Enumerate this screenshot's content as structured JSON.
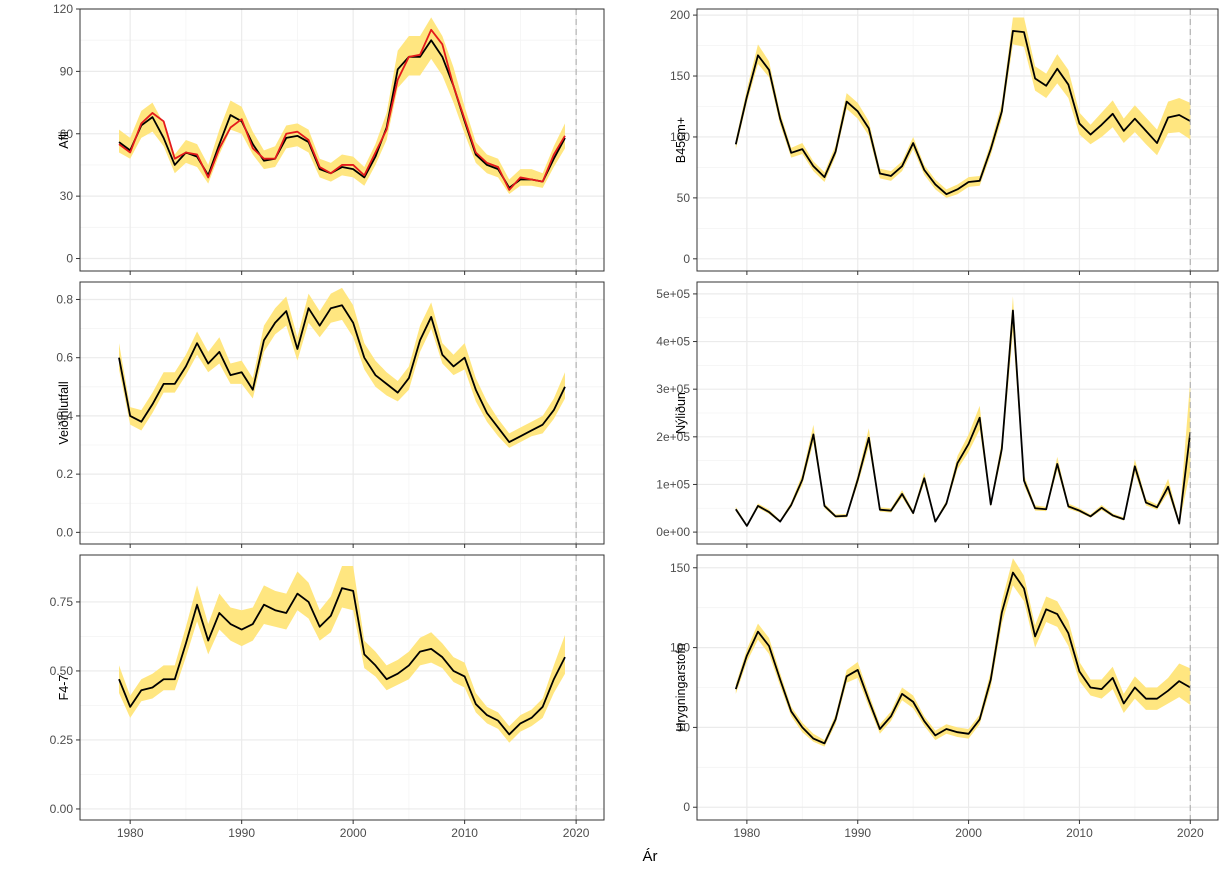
{
  "figure": {
    "xlabel": "Ár"
  },
  "chart_data": [
    {
      "type": "line",
      "ylabel": "Afli",
      "x": [
        1979,
        1980,
        1981,
        1982,
        1983,
        1984,
        1985,
        1986,
        1987,
        1988,
        1989,
        1990,
        1991,
        1992,
        1993,
        1994,
        1995,
        1996,
        1997,
        1998,
        1999,
        2000,
        2001,
        2002,
        2003,
        2004,
        2005,
        2006,
        2007,
        2008,
        2009,
        2010,
        2011,
        2012,
        2013,
        2014,
        2015,
        2016,
        2017,
        2018,
        2019
      ],
      "xlim": [
        1975.5,
        2022.5
      ],
      "xticks": [
        1980,
        1990,
        2000,
        2010,
        2020
      ],
      "ylim": [
        -6,
        120
      ],
      "yticks": [
        0,
        30,
        60,
        90,
        120
      ],
      "yticklabels": [
        "0",
        "30",
        "60",
        "90",
        "120"
      ],
      "vline": 2020,
      "series": [
        {
          "role": "estimate",
          "color": "#000000",
          "values": [
            56,
            52,
            64,
            68,
            58,
            45,
            51,
            49,
            40,
            55,
            69,
            66,
            55,
            47,
            48,
            58,
            59,
            56,
            43,
            41,
            44,
            43,
            39,
            49,
            63,
            91,
            97,
            97,
            105,
            97,
            83,
            66,
            50,
            45,
            43,
            34,
            38,
            38,
            37,
            48,
            58
          ]
        },
        {
          "role": "observed",
          "color": "#e41a1c",
          "values": [
            55,
            51,
            65,
            70,
            66,
            48,
            51,
            50,
            39,
            53,
            63,
            67,
            53,
            48,
            48,
            60,
            61,
            57,
            44,
            41,
            45,
            45,
            40,
            51,
            62,
            86,
            97,
            98,
            110,
            103,
            83,
            67,
            51,
            46,
            44,
            33,
            39,
            38,
            37,
            50,
            59
          ]
        }
      ],
      "band_lower": [
        51,
        48,
        58,
        61,
        54,
        41,
        46,
        44,
        36,
        50,
        62,
        60,
        50,
        43,
        44,
        53,
        54,
        51,
        39,
        37,
        40,
        39,
        35,
        45,
        57,
        82,
        88,
        88,
        96,
        88,
        75,
        60,
        46,
        41,
        39,
        31,
        35,
        35,
        34,
        44,
        53
      ],
      "band_upper": [
        62,
        58,
        71,
        75,
        65,
        50,
        57,
        55,
        45,
        62,
        76,
        73,
        61,
        52,
        54,
        64,
        65,
        62,
        48,
        46,
        50,
        49,
        44,
        55,
        70,
        100,
        107,
        107,
        116,
        107,
        92,
        73,
        56,
        50,
        48,
        38,
        43,
        43,
        41,
        54,
        65
      ]
    },
    {
      "type": "line",
      "ylabel": "B45cm+",
      "x": [
        1979,
        1980,
        1981,
        1982,
        1983,
        1984,
        1985,
        1986,
        1987,
        1988,
        1989,
        1990,
        1991,
        1992,
        1993,
        1994,
        1995,
        1996,
        1997,
        1998,
        1999,
        2000,
        2001,
        2002,
        2003,
        2004,
        2005,
        2006,
        2007,
        2008,
        2009,
        2010,
        2011,
        2012,
        2013,
        2014,
        2015,
        2016,
        2017,
        2018,
        2019,
        2020
      ],
      "xlim": [
        1975.5,
        2022.5
      ],
      "xticks": [
        1980,
        1990,
        2000,
        2010,
        2020
      ],
      "ylim": [
        -10,
        205
      ],
      "yticks": [
        0,
        50,
        100,
        150,
        200
      ],
      "yticklabels": [
        "0",
        "50",
        "100",
        "150",
        "200"
      ],
      "vline": 2020,
      "series": [
        {
          "role": "estimate",
          "color": "#000000",
          "values": [
            94,
            133,
            167,
            155,
            115,
            87,
            90,
            76,
            67,
            88,
            129,
            121,
            107,
            70,
            68,
            76,
            95,
            73,
            61,
            53,
            57,
            63,
            64,
            90,
            121,
            187,
            186,
            148,
            142,
            156,
            143,
            111,
            102,
            110,
            119,
            105,
            115,
            105,
            95,
            116,
            118,
            113
          ]
        }
      ],
      "band_lower": [
        90,
        128,
        160,
        149,
        110,
        83,
        86,
        72,
        63,
        84,
        123,
        115,
        101,
        66,
        64,
        72,
        90,
        69,
        57,
        50,
        53,
        59,
        60,
        85,
        115,
        176,
        174,
        138,
        132,
        144,
        132,
        102,
        94,
        100,
        108,
        95,
        104,
        94,
        85,
        103,
        104,
        98
      ],
      "band_upper": [
        98,
        139,
        176,
        162,
        120,
        91,
        95,
        80,
        71,
        93,
        136,
        128,
        113,
        74,
        72,
        80,
        100,
        77,
        65,
        57,
        61,
        67,
        68,
        95,
        128,
        198,
        198,
        158,
        152,
        168,
        155,
        120,
        110,
        120,
        130,
        115,
        126,
        116,
        106,
        129,
        132,
        128
      ]
    },
    {
      "type": "line",
      "ylabel": "Veiðihlutfall",
      "x": [
        1979,
        1980,
        1981,
        1982,
        1983,
        1984,
        1985,
        1986,
        1987,
        1988,
        1989,
        1990,
        1991,
        1992,
        1993,
        1994,
        1995,
        1996,
        1997,
        1998,
        1999,
        2000,
        2001,
        2002,
        2003,
        2004,
        2005,
        2006,
        2007,
        2008,
        2009,
        2010,
        2011,
        2012,
        2013,
        2014,
        2015,
        2016,
        2017,
        2018,
        2019
      ],
      "xlim": [
        1975.5,
        2022.5
      ],
      "xticks": [
        1980,
        1990,
        2000,
        2010,
        2020
      ],
      "ylim": [
        -0.04,
        0.86
      ],
      "yticks": [
        0.0,
        0.2,
        0.4,
        0.6,
        0.8
      ],
      "yticklabels": [
        "0.0",
        "0.2",
        "0.4",
        "0.6",
        "0.8"
      ],
      "vline": 2020,
      "series": [
        {
          "role": "estimate",
          "color": "#000000",
          "values": [
            0.6,
            0.4,
            0.38,
            0.44,
            0.51,
            0.51,
            0.57,
            0.65,
            0.58,
            0.62,
            0.54,
            0.55,
            0.49,
            0.66,
            0.72,
            0.76,
            0.63,
            0.77,
            0.71,
            0.77,
            0.78,
            0.72,
            0.6,
            0.54,
            0.51,
            0.48,
            0.53,
            0.66,
            0.74,
            0.61,
            0.57,
            0.6,
            0.49,
            0.41,
            0.36,
            0.31,
            0.33,
            0.35,
            0.37,
            0.42,
            0.5
          ]
        }
      ],
      "band_lower": [
        0.56,
        0.37,
        0.35,
        0.41,
        0.48,
        0.48,
        0.54,
        0.61,
        0.55,
        0.58,
        0.51,
        0.51,
        0.46,
        0.62,
        0.68,
        0.71,
        0.59,
        0.72,
        0.67,
        0.72,
        0.73,
        0.67,
        0.56,
        0.5,
        0.47,
        0.45,
        0.49,
        0.62,
        0.7,
        0.58,
        0.54,
        0.56,
        0.45,
        0.38,
        0.33,
        0.29,
        0.31,
        0.33,
        0.34,
        0.39,
        0.46
      ],
      "band_upper": [
        0.65,
        0.43,
        0.42,
        0.48,
        0.55,
        0.55,
        0.61,
        0.69,
        0.62,
        0.67,
        0.58,
        0.59,
        0.53,
        0.71,
        0.77,
        0.81,
        0.67,
        0.82,
        0.76,
        0.82,
        0.84,
        0.78,
        0.65,
        0.59,
        0.55,
        0.52,
        0.57,
        0.71,
        0.79,
        0.65,
        0.61,
        0.65,
        0.53,
        0.45,
        0.39,
        0.34,
        0.36,
        0.38,
        0.4,
        0.46,
        0.55
      ]
    },
    {
      "type": "line",
      "ylabel": "Nýliðun",
      "x": [
        1979,
        1980,
        1981,
        1982,
        1983,
        1984,
        1985,
        1986,
        1987,
        1988,
        1989,
        1990,
        1991,
        1992,
        1993,
        1994,
        1995,
        1996,
        1997,
        1998,
        1999,
        2000,
        2001,
        2002,
        2003,
        2004,
        2005,
        2006,
        2007,
        2008,
        2009,
        2010,
        2011,
        2012,
        2013,
        2014,
        2015,
        2016,
        2017,
        2018,
        2019,
        2020
      ],
      "xlim": [
        1975.5,
        2022.5
      ],
      "xticks": [
        1980,
        1990,
        2000,
        2010,
        2020
      ],
      "ylim": [
        -25000,
        525000
      ],
      "yticks": [
        0,
        100000,
        200000,
        300000,
        400000,
        500000
      ],
      "yticklabels": [
        "0e+00",
        "1e+05",
        "2e+05",
        "3e+05",
        "4e+05",
        "5e+05"
      ],
      "vline": 2020,
      "series": [
        {
          "role": "estimate",
          "color": "#000000",
          "values": [
            48000,
            13000,
            55000,
            42000,
            22000,
            57000,
            110000,
            205000,
            55000,
            33000,
            34000,
            110000,
            198000,
            47000,
            45000,
            80000,
            40000,
            113000,
            22000,
            60000,
            145000,
            185000,
            240000,
            58000,
            175000,
            465000,
            108000,
            50000,
            48000,
            143000,
            54000,
            45000,
            33000,
            51000,
            35000,
            27000,
            138000,
            62000,
            52000,
            95000,
            18000,
            210000
          ]
        }
      ],
      "band_lower": [
        44000,
        11000,
        51000,
        38000,
        20000,
        52000,
        100000,
        188000,
        50000,
        30000,
        31000,
        100000,
        180000,
        43000,
        41000,
        73000,
        36000,
        103000,
        20000,
        55000,
        132000,
        168000,
        215000,
        53000,
        160000,
        420000,
        98000,
        45000,
        44000,
        130000,
        49000,
        41000,
        30000,
        46000,
        32000,
        24000,
        124000,
        56000,
        47000,
        82000,
        14000,
        130000
      ],
      "band_upper": [
        53000,
        16000,
        60000,
        47000,
        25000,
        63000,
        122000,
        225000,
        60000,
        37000,
        38000,
        121000,
        218000,
        52000,
        50000,
        88000,
        45000,
        125000,
        25000,
        66000,
        160000,
        205000,
        265000,
        64000,
        192000,
        495000,
        120000,
        56000,
        53000,
        158000,
        60000,
        50000,
        37000,
        57000,
        39000,
        31000,
        153000,
        69000,
        58000,
        112000,
        24000,
        320000
      ]
    },
    {
      "type": "line",
      "ylabel": "F4-7",
      "x": [
        1979,
        1980,
        1981,
        1982,
        1983,
        1984,
        1985,
        1986,
        1987,
        1988,
        1989,
        1990,
        1991,
        1992,
        1993,
        1994,
        1995,
        1996,
        1997,
        1998,
        1999,
        2000,
        2001,
        2002,
        2003,
        2004,
        2005,
        2006,
        2007,
        2008,
        2009,
        2010,
        2011,
        2012,
        2013,
        2014,
        2015,
        2016,
        2017,
        2018,
        2019
      ],
      "xlim": [
        1975.5,
        2022.5
      ],
      "xticks": [
        1980,
        1990,
        2000,
        2010,
        2020
      ],
      "ylim": [
        -0.04,
        0.92
      ],
      "yticks": [
        0.0,
        0.25,
        0.5,
        0.75
      ],
      "yticklabels": [
        "0.00",
        "0.25",
        "0.50",
        "0.75"
      ],
      "vline": 2020,
      "series": [
        {
          "role": "estimate",
          "color": "#000000",
          "values": [
            0.47,
            0.37,
            0.43,
            0.44,
            0.47,
            0.47,
            0.6,
            0.74,
            0.61,
            0.71,
            0.67,
            0.65,
            0.67,
            0.74,
            0.72,
            0.71,
            0.78,
            0.75,
            0.66,
            0.7,
            0.8,
            0.79,
            0.56,
            0.52,
            0.47,
            0.49,
            0.52,
            0.57,
            0.58,
            0.55,
            0.5,
            0.48,
            0.38,
            0.34,
            0.32,
            0.27,
            0.31,
            0.33,
            0.37,
            0.47,
            0.55
          ]
        }
      ],
      "band_lower": [
        0.42,
        0.33,
        0.39,
        0.4,
        0.43,
        0.43,
        0.55,
        0.68,
        0.56,
        0.65,
        0.61,
        0.59,
        0.61,
        0.67,
        0.66,
        0.65,
        0.72,
        0.69,
        0.61,
        0.64,
        0.73,
        0.72,
        0.51,
        0.48,
        0.43,
        0.45,
        0.47,
        0.52,
        0.53,
        0.51,
        0.46,
        0.44,
        0.35,
        0.31,
        0.29,
        0.24,
        0.28,
        0.3,
        0.33,
        0.42,
        0.49
      ],
      "band_upper": [
        0.52,
        0.41,
        0.47,
        0.49,
        0.52,
        0.52,
        0.66,
        0.81,
        0.67,
        0.78,
        0.73,
        0.72,
        0.73,
        0.81,
        0.79,
        0.78,
        0.86,
        0.82,
        0.72,
        0.77,
        0.88,
        0.88,
        0.61,
        0.57,
        0.52,
        0.54,
        0.57,
        0.62,
        0.64,
        0.6,
        0.55,
        0.53,
        0.42,
        0.37,
        0.35,
        0.3,
        0.34,
        0.36,
        0.4,
        0.52,
        0.63
      ]
    },
    {
      "type": "line",
      "ylabel": "Hrygningarstofn",
      "x": [
        1979,
        1980,
        1981,
        1982,
        1983,
        1984,
        1985,
        1986,
        1987,
        1988,
        1989,
        1990,
        1991,
        1992,
        1993,
        1994,
        1995,
        1996,
        1997,
        1998,
        1999,
        2000,
        2001,
        2002,
        2003,
        2004,
        2005,
        2006,
        2007,
        2008,
        2009,
        2010,
        2011,
        2012,
        2013,
        2014,
        2015,
        2016,
        2017,
        2018,
        2019,
        2020
      ],
      "xlim": [
        1975.5,
        2022.5
      ],
      "xticks": [
        1980,
        1990,
        2000,
        2010,
        2020
      ],
      "ylim": [
        -8,
        158
      ],
      "yticks": [
        0,
        50,
        100,
        150
      ],
      "yticklabels": [
        "0",
        "50",
        "100",
        "150"
      ],
      "vline": 2020,
      "series": [
        {
          "role": "estimate",
          "color": "#000000",
          "values": [
            74,
            95,
            110,
            101,
            80,
            60,
            50,
            43,
            40,
            55,
            82,
            86,
            67,
            49,
            57,
            71,
            66,
            54,
            45,
            49,
            47,
            46,
            55,
            80,
            122,
            147,
            137,
            107,
            124,
            121,
            109,
            85,
            75,
            74,
            81,
            65,
            75,
            68,
            68,
            73,
            79,
            75
          ]
        }
      ],
      "band_lower": [
        71,
        91,
        105,
        96,
        76,
        57,
        47,
        41,
        38,
        52,
        78,
        81,
        63,
        46,
        54,
        67,
        62,
        51,
        42,
        46,
        44,
        43,
        52,
        75,
        115,
        139,
        129,
        100,
        116,
        113,
        101,
        79,
        70,
        68,
        74,
        59,
        68,
        61,
        61,
        65,
        69,
        64
      ],
      "band_upper": [
        77,
        99,
        115,
        106,
        84,
        63,
        53,
        46,
        42,
        58,
        86,
        91,
        71,
        52,
        60,
        75,
        70,
        57,
        48,
        52,
        50,
        49,
        58,
        85,
        129,
        156,
        145,
        114,
        132,
        129,
        117,
        91,
        80,
        80,
        88,
        71,
        82,
        75,
        75,
        81,
        90,
        87
      ]
    }
  ]
}
